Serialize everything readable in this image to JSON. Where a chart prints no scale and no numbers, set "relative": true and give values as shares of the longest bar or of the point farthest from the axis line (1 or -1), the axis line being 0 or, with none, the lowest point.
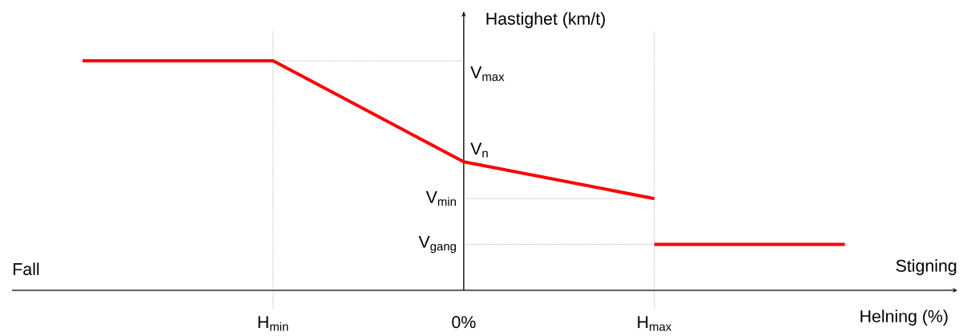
{
  "chart_data": {
    "type": "line",
    "relative": true,
    "xlabel": "Helning (%)",
    "ylabel": "Hastighet (km/t)",
    "categories": [
      null,
      "H$_{min}$",
      "0%",
      "H$_{max}$",
      null
    ],
    "series": [
      {
        "color": "#ff0000",
        "values": [
          1,
          1,
          0.56,
          0.4,
          null
        ]
      },
      {
        "color": "#ff0000",
        "values": [
          null,
          null,
          null,
          0.2,
          0.2
        ]
      }
    ],
    "ref_lines": [
      {
        "axis": "x",
        "value": "H$_{min}$",
        "line_style": "dotted",
        "color": "#808080"
      },
      {
        "axis": "x",
        "value": "H$_{max}$",
        "line_style": "dotted",
        "color": "#808080"
      },
      {
        "axis": "x",
        "value": "0%",
        "line_style": "solid",
        "color": "#000000"
      },
      {
        "axis": "y",
        "value": 1,
        "label": "V$_{max}$",
        "line_style": "dotted",
        "color": "#808080"
      },
      {
        "axis": "y",
        "value": 0.4,
        "label": "V$_{min}$",
        "line_style": "dotted",
        "color": "#808080"
      },
      {
        "axis": "y",
        "value": 0.2,
        "label": "V$_{gang}$",
        "line_style": "dotted",
        "color": "#808080"
      }
    ],
    "annotations": [
      "Fall",
      "Stigning",
      {
        "text": "V$_{n}$",
        "x": "0%",
        "y": 0.56
      }
    ],
    "line_style": "solid"
  }
}
